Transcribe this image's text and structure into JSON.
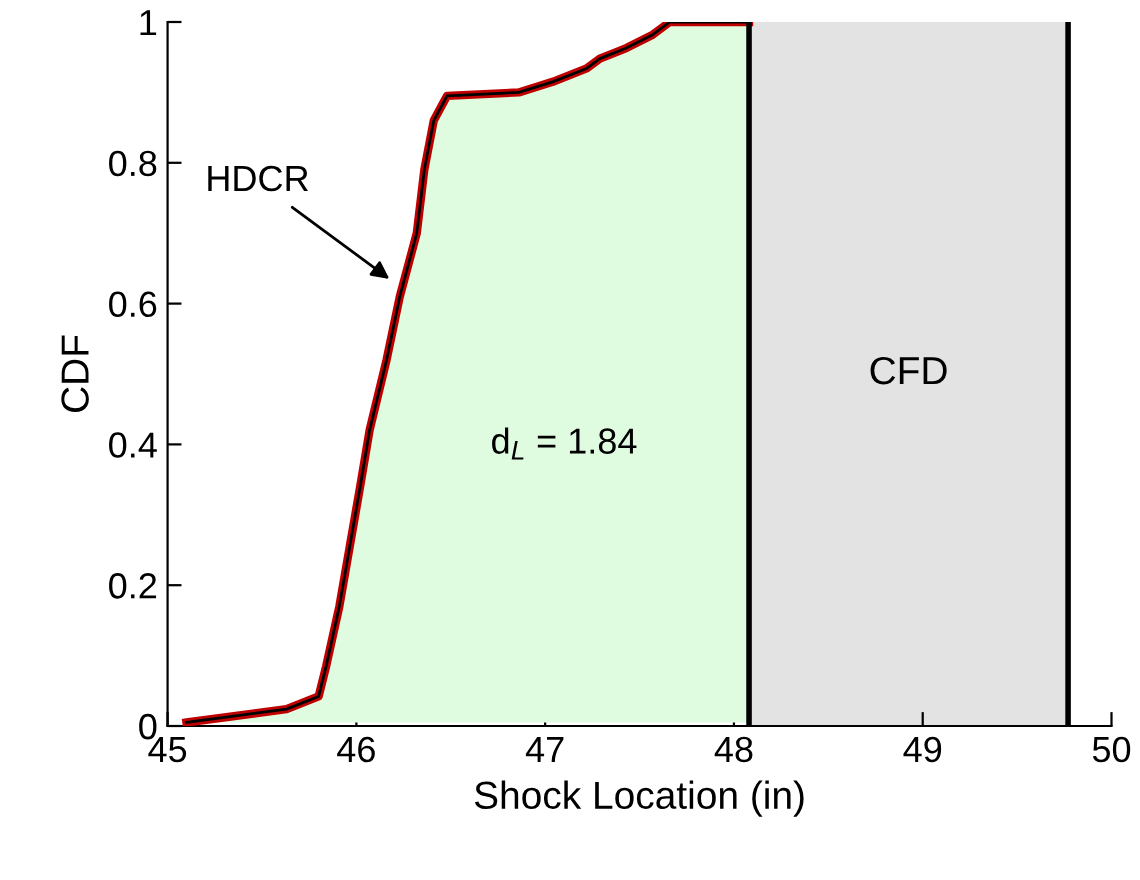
{
  "chart_data": {
    "type": "line",
    "xlabel": "Shock Location (in)",
    "ylabel": "CDF",
    "x": [
      45.1,
      45.63,
      45.8,
      45.84,
      45.91,
      46.02,
      46.07,
      46.16,
      46.23,
      46.32,
      46.36,
      46.41,
      46.48,
      46.86,
      47.04,
      47.22,
      47.29,
      47.43,
      47.57,
      47.66,
      48.08
    ],
    "series": [
      {
        "color": "#c00000",
        "values": [
          0.005,
          0.024,
          0.042,
          0.085,
          0.17,
          0.34,
          0.42,
          0.52,
          0.61,
          0.7,
          0.79,
          0.86,
          0.895,
          0.9,
          0.915,
          0.934,
          0.948,
          0.963,
          0.982,
          1,
          1
        ]
      }
    ],
    "bands": [
      {
        "axis": "x",
        "from": 48.08,
        "to": 49.77,
        "label": "CFD",
        "color": "#e3e3e3"
      }
    ],
    "ref_lines": [
      {
        "axis": "x",
        "value": 48.08,
        "color": "#000000"
      },
      {
        "axis": "x",
        "value": 49.77,
        "color": "#000000"
      }
    ],
    "annotations": [
      "HDCR",
      "d$_{L}$ = 1.84"
    ],
    "xlim": [
      45,
      50
    ],
    "ylim": [
      0,
      1
    ],
    "xticks": [
      45,
      46,
      47,
      48,
      49,
      50
    ],
    "yticks": [
      0,
      0.2,
      0.4,
      0.6,
      0.8,
      1
    ],
    "grid": false,
    "marker": "none",
    "line_style": "solid"
  }
}
